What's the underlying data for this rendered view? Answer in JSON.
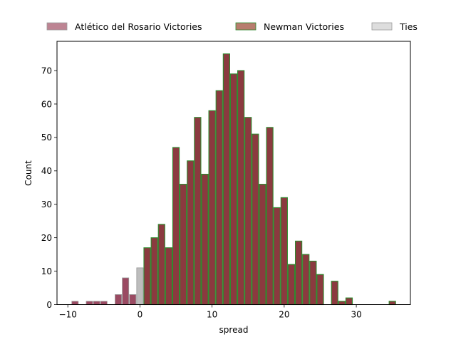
{
  "chart_data": {
    "type": "bar",
    "xlabel": "spread",
    "ylabel": "Count",
    "xlim": [
      -11.5,
      37.5
    ],
    "ylim": [
      0,
      78.75
    ],
    "xticks": [
      -10,
      0,
      10,
      20,
      30
    ],
    "yticks": [
      0,
      10,
      20,
      30,
      40,
      50,
      60,
      70
    ],
    "grid": false,
    "legend_position": "top",
    "series": [
      {
        "name": "Atlético del Rosario Victories",
        "fill": "#bd8493",
        "stroke": "#9b9b9b",
        "x": [
          -9,
          -7,
          -6,
          -5,
          -3,
          -2,
          -1
        ],
        "values": [
          1,
          1,
          1,
          1,
          3,
          8,
          3
        ]
      },
      {
        "name": "Newman Victories",
        "fill": "#b87d6e",
        "stroke": "#2e8b2e",
        "x": [
          1,
          2,
          3,
          4,
          5,
          6,
          7,
          8,
          9,
          10,
          11,
          12,
          13,
          14,
          15,
          16,
          17,
          18,
          19,
          20,
          21,
          22,
          23,
          24,
          25,
          27,
          28,
          29,
          35
        ],
        "values": [
          17,
          20,
          24,
          17,
          47,
          36,
          43,
          56,
          39,
          58,
          64,
          75,
          69,
          70,
          56,
          51,
          36,
          53,
          29,
          32,
          12,
          19,
          15,
          13,
          9,
          7,
          1,
          2,
          1
        ]
      },
      {
        "name": "Ties",
        "fill": "#dddddd",
        "stroke": "#9b9b9b",
        "x": [
          0
        ],
        "values": [
          11
        ]
      }
    ],
    "overlay_fill": "#8b3a3f"
  }
}
